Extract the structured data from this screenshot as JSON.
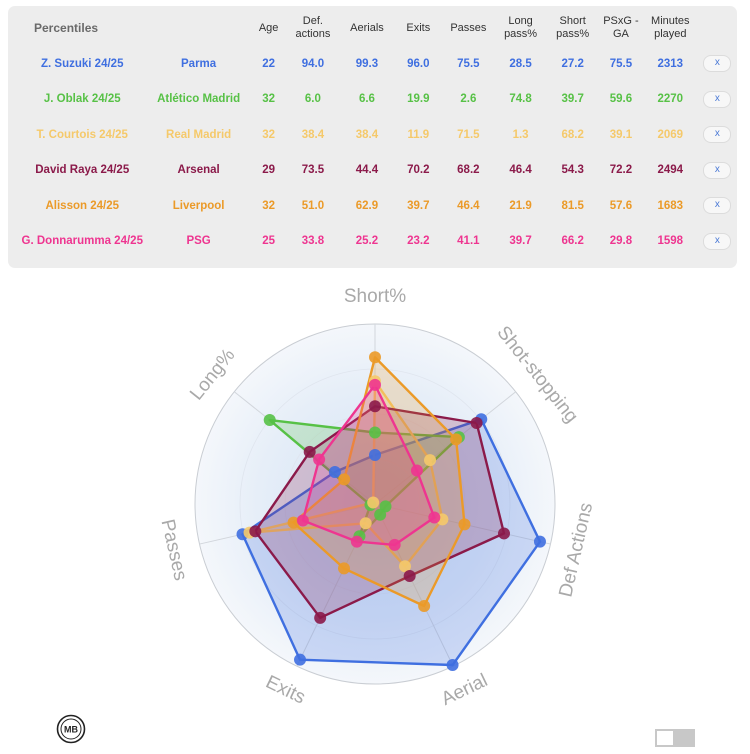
{
  "table": {
    "headers": [
      "Percentiles",
      "",
      "Age",
      "Def. actions",
      "Aerials",
      "Exits",
      "Passes",
      "Long pass%",
      "Short pass%",
      "PSxG - GA",
      "Minutes played",
      ""
    ],
    "remove_label": "x",
    "rows": [
      {
        "player": "Z. Suzuki 24/25",
        "club": "Parma",
        "age": "22",
        "def_actions": "94.0",
        "aerials": "99.3",
        "exits": "96.0",
        "passes": "75.5",
        "long_pass": "28.5",
        "short_pass": "27.2",
        "psxg_ga": "75.5",
        "minutes": "2313",
        "color": "#3f6fe0"
      },
      {
        "player": "J. Oblak 24/25",
        "club": "Atlético Madrid",
        "age": "32",
        "def_actions": "6.0",
        "aerials": "6.6",
        "exits": "19.9",
        "passes": "2.6",
        "long_pass": "74.8",
        "short_pass": "39.7",
        "psxg_ga": "59.6",
        "minutes": "2270",
        "color": "#57c146"
      },
      {
        "player": "T. Courtois 24/25",
        "club": "Real Madrid",
        "age": "32",
        "def_actions": "38.4",
        "aerials": "38.4",
        "exits": "11.9",
        "passes": "71.5",
        "long_pass": "1.3",
        "short_pass": "68.2",
        "psxg_ga": "39.1",
        "minutes": "2069",
        "color": "#f5c96a"
      },
      {
        "player": "David Raya 24/25",
        "club": "Arsenal",
        "age": "29",
        "def_actions": "73.5",
        "aerials": "44.4",
        "exits": "70.2",
        "passes": "68.2",
        "long_pass": "46.4",
        "short_pass": "54.3",
        "psxg_ga": "72.2",
        "minutes": "2494",
        "color": "#8b1a4a"
      },
      {
        "player": "Alisson 24/25",
        "club": "Liverpool",
        "age": "32",
        "def_actions": "51.0",
        "aerials": "62.9",
        "exits": "39.7",
        "passes": "46.4",
        "long_pass": "21.9",
        "short_pass": "81.5",
        "psxg_ga": "57.6",
        "minutes": "1683",
        "color": "#eb9a28"
      },
      {
        "player": "G. Donnarumma 24/25",
        "club": "PSG",
        "age": "25",
        "def_actions": "33.8",
        "aerials": "25.2",
        "exits": "23.2",
        "passes": "41.1",
        "long_pass": "39.7",
        "short_pass": "66.2",
        "psxg_ga": "29.8",
        "minutes": "1598",
        "color": "#ee3590"
      }
    ]
  },
  "chart_data": {
    "type": "radar",
    "axes": [
      "Short%",
      "Shot-stopping",
      "Def Actions",
      "Aerial",
      "Exits",
      "Passes",
      "Long%"
    ],
    "range": [
      0,
      100
    ],
    "series": [
      {
        "name": "Z. Suzuki 24/25",
        "color": "#3f6fe0",
        "values": [
          27.2,
          75.5,
          94.0,
          99.3,
          96.0,
          75.5,
          28.5
        ]
      },
      {
        "name": "J. Oblak 24/25",
        "color": "#57c146",
        "values": [
          39.7,
          59.6,
          6.0,
          6.6,
          19.9,
          2.6,
          74.8
        ]
      },
      {
        "name": "T. Courtois 24/25",
        "color": "#f5c96a",
        "values": [
          68.2,
          39.1,
          38.4,
          38.4,
          11.9,
          71.5,
          1.3
        ]
      },
      {
        "name": "David Raya 24/25",
        "color": "#8b1a4a",
        "values": [
          54.3,
          72.2,
          73.5,
          44.4,
          70.2,
          68.2,
          46.4
        ]
      },
      {
        "name": "Alisson 24/25",
        "color": "#eb9a28",
        "values": [
          81.5,
          57.6,
          51.0,
          62.9,
          39.7,
          46.4,
          21.9
        ]
      },
      {
        "name": "G. Donnarumma 24/25",
        "color": "#ee3590",
        "values": [
          66.2,
          29.8,
          33.8,
          25.2,
          23.2,
          41.1,
          39.7
        ]
      }
    ]
  },
  "footer": {
    "logo_text": "MB"
  }
}
